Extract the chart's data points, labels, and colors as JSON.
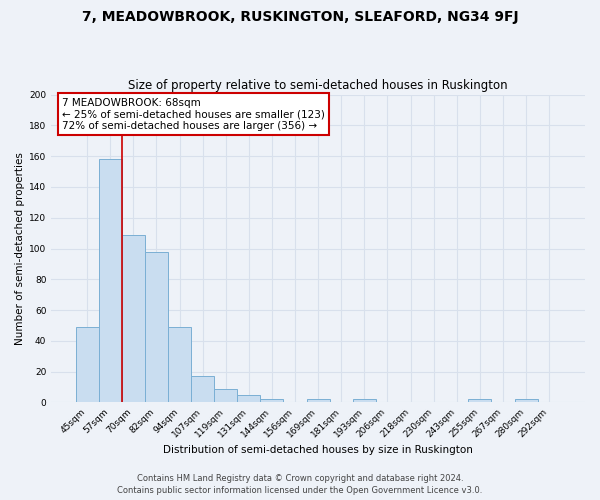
{
  "title": "7, MEADOWBROOK, RUSKINGTON, SLEAFORD, NG34 9FJ",
  "subtitle": "Size of property relative to semi-detached houses in Ruskington",
  "xlabel": "Distribution of semi-detached houses by size in Ruskington",
  "ylabel": "Number of semi-detached properties",
  "bar_color": "#c9ddf0",
  "bar_edge_color": "#7aafd4",
  "categories": [
    "45sqm",
    "57sqm",
    "70sqm",
    "82sqm",
    "94sqm",
    "107sqm",
    "119sqm",
    "131sqm",
    "144sqm",
    "156sqm",
    "169sqm",
    "181sqm",
    "193sqm",
    "206sqm",
    "218sqm",
    "230sqm",
    "243sqm",
    "255sqm",
    "267sqm",
    "280sqm",
    "292sqm"
  ],
  "values": [
    49,
    158,
    109,
    98,
    49,
    17,
    9,
    5,
    2,
    0,
    2,
    0,
    2,
    0,
    0,
    0,
    0,
    2,
    0,
    2,
    0
  ],
  "ylim": [
    0,
    200
  ],
  "yticks": [
    0,
    20,
    40,
    60,
    80,
    100,
    120,
    140,
    160,
    180,
    200
  ],
  "vline_bin_index": 1,
  "annotation_text_line1": "7 MEADOWBROOK: 68sqm",
  "annotation_text_line2": "← 25% of semi-detached houses are smaller (123)",
  "annotation_text_line3": "72% of semi-detached houses are larger (356) →",
  "annotation_box_color": "#ffffff",
  "annotation_box_edge": "#cc0000",
  "vline_color": "#cc0000",
  "footer_line1": "Contains HM Land Registry data © Crown copyright and database right 2024.",
  "footer_line2": "Contains public sector information licensed under the Open Government Licence v3.0.",
  "background_color": "#eef2f8",
  "grid_color": "#d8e0ec",
  "title_fontsize": 10,
  "subtitle_fontsize": 8.5,
  "tick_fontsize": 6.5,
  "label_fontsize": 7.5,
  "annotation_fontsize": 7.5,
  "footer_fontsize": 6
}
